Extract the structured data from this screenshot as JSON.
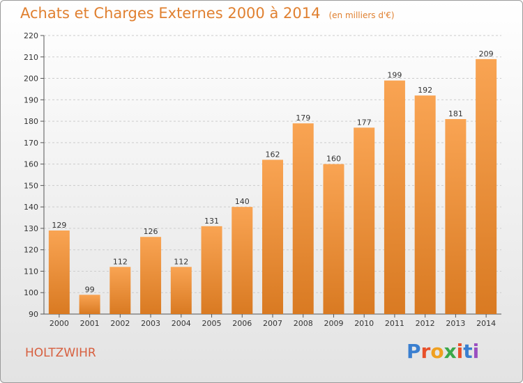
{
  "title": "Achats et Charges Externes 2000 à 2014",
  "subtitle": "(en milliers d'€)",
  "commune": "HOLTZWIHR",
  "logo": {
    "letters": [
      "P",
      "r",
      "o",
      "x",
      "i",
      "t",
      "i"
    ],
    "colors": [
      "#3a7fd0",
      "#e8502a",
      "#f0a020",
      "#3aa84a",
      "#e8502a",
      "#3a7fd0",
      "#9a4fc0"
    ]
  },
  "colors": {
    "bar_light": "#f9a453",
    "bar_dark": "#d97a22",
    "title": "#e08030",
    "commune": "#d75f3f"
  },
  "chart_data": {
    "type": "bar",
    "title": "Achats et Charges Externes 2000 à 2014",
    "categories": [
      "2000",
      "2001",
      "2002",
      "2003",
      "2004",
      "2005",
      "2006",
      "2007",
      "2008",
      "2009",
      "2010",
      "2011",
      "2012",
      "2013",
      "2014"
    ],
    "values": [
      129,
      99,
      112,
      126,
      112,
      131,
      140,
      162,
      179,
      160,
      177,
      199,
      192,
      181,
      209
    ],
    "xlabel": "",
    "ylabel": "",
    "ylim": [
      90,
      220
    ],
    "yticks": [
      90,
      100,
      110,
      120,
      130,
      140,
      150,
      160,
      170,
      180,
      190,
      200,
      210,
      220
    ],
    "grid": true,
    "data_labels": true
  }
}
